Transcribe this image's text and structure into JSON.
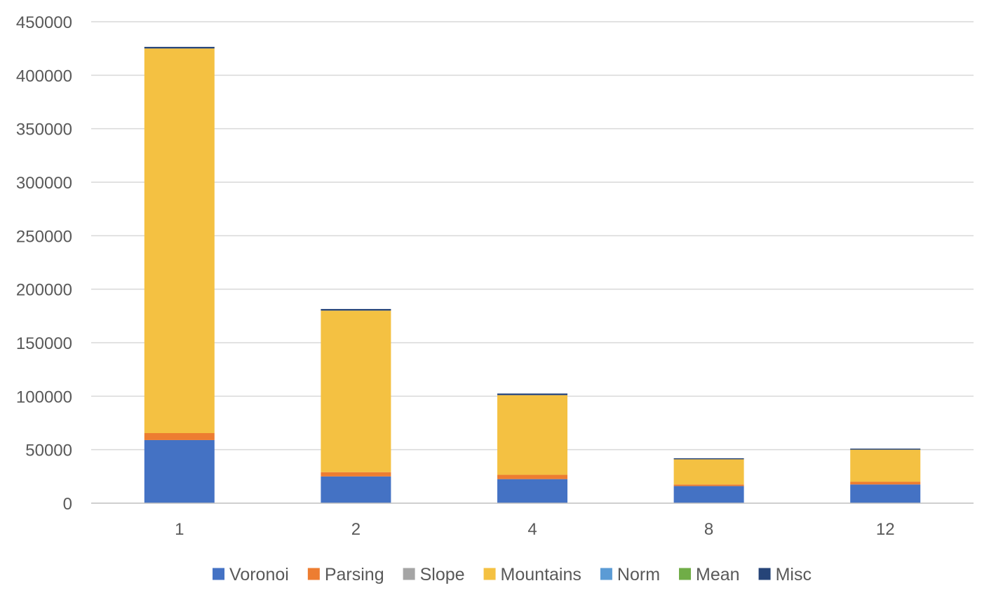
{
  "chart_data": {
    "type": "bar",
    "stacked": true,
    "title": "",
    "xlabel": "",
    "ylabel": "",
    "categories": [
      "1",
      "2",
      "4",
      "8",
      "12"
    ],
    "ylim": [
      0,
      450000
    ],
    "yticks": [
      0,
      50000,
      100000,
      150000,
      200000,
      250000,
      300000,
      350000,
      400000,
      450000
    ],
    "grid": true,
    "legend_position": "bottom",
    "series": [
      {
        "name": "Voronoi",
        "color": "#4472c4",
        "values": [
          59000,
          25000,
          22500,
          16000,
          17500
        ]
      },
      {
        "name": "Parsing",
        "color": "#ed7d31",
        "values": [
          6500,
          4000,
          4000,
          1500,
          2500
        ]
      },
      {
        "name": "Slope",
        "color": "#a5a5a5",
        "values": [
          0,
          0,
          0,
          0,
          0
        ]
      },
      {
        "name": "Mountains",
        "color": "#f4c142",
        "values": [
          359500,
          151000,
          74500,
          23500,
          30000
        ]
      },
      {
        "name": "Norm",
        "color": "#5b9bd5",
        "values": [
          0,
          0,
          0,
          0,
          0
        ]
      },
      {
        "name": "Mean",
        "color": "#70ad47",
        "values": [
          0,
          0,
          0,
          0,
          0
        ]
      },
      {
        "name": "Misc",
        "color": "#264478",
        "values": [
          1500,
          1500,
          1500,
          1000,
          1000
        ]
      }
    ]
  }
}
